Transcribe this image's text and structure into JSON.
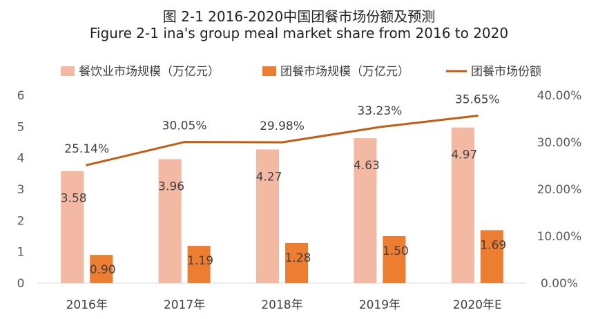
{
  "chart_data": {
    "type": "bar",
    "title": "图 2-1 2016-2020中国团餐市场份额及预测",
    "subtitle": "Figure 2-1 ina's group meal market share from 2016 to 2020",
    "categories": [
      "2016年",
      "2017年",
      "2018年",
      "2019年",
      "2020年E"
    ],
    "series": [
      {
        "name": "餐饮业市场规模（万亿元）",
        "type": "bar",
        "axis": "left",
        "color": "#F4B9A3",
        "values": [
          3.58,
          3.96,
          4.27,
          4.63,
          4.97
        ],
        "labels": [
          "3.58",
          "3.96",
          "4.27",
          "4.63",
          "4.97"
        ]
      },
      {
        "name": "团餐市场规模（万亿元）",
        "type": "bar",
        "axis": "left",
        "color": "#ED7D31",
        "values": [
          0.9,
          1.19,
          1.28,
          1.5,
          1.69
        ],
        "labels": [
          "0.90",
          "1.19",
          "1.28",
          "1.50",
          "1.69"
        ]
      },
      {
        "name": "团餐市场份额",
        "type": "line",
        "axis": "right",
        "color": "#C55A11",
        "values": [
          25.14,
          30.05,
          29.98,
          33.23,
          35.65
        ],
        "labels": [
          "25.14%",
          "30.05%",
          "29.98%",
          "33.23%",
          "35.65%"
        ]
      }
    ],
    "y_left": {
      "ylim": [
        0,
        6
      ],
      "ticks": [
        "0",
        "1",
        "2",
        "3",
        "4",
        "5",
        "6"
      ]
    },
    "y_right": {
      "ylim": [
        0,
        40
      ],
      "ticks": [
        "0.00%",
        "10.00%",
        "20.00%",
        "30.00%",
        "40.00%"
      ]
    },
    "grid": false,
    "legend": "top"
  }
}
